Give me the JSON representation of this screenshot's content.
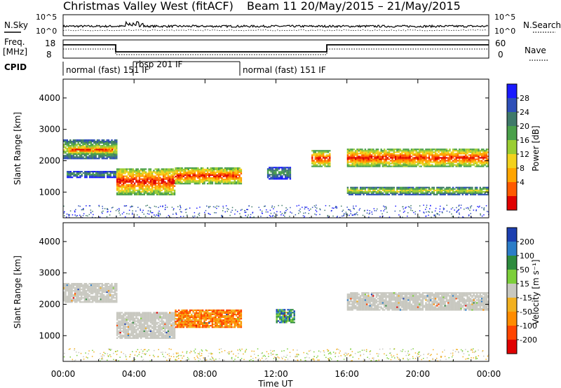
{
  "chart_data": {
    "type": "heatmap",
    "title_left": "Christmas Valley West (fitACF)",
    "title_right": "Beam 11 20/May/2015 – 21/May/2015",
    "xlabel": "Time UT",
    "x_ticks": [
      "00:00",
      "04:00",
      "08:00",
      "12:00",
      "16:00",
      "20:00",
      "00:00"
    ],
    "xlim_hours": [
      0,
      24
    ],
    "top_panels": {
      "nsky_label": "N.Sky",
      "nsearch_label": "N.Search",
      "noise_ticks_left": [
        "10^5",
        "10^0"
      ],
      "noise_ticks_right": [
        "10^5",
        "10^0"
      ],
      "freq_label_1": "Freq.",
      "freq_label_2": "[MHz]",
      "freq_ticks": [
        "18",
        "8"
      ],
      "nave_label": "Nave",
      "nave_ticks": [
        "60",
        "0"
      ],
      "cpid_label": "CPID",
      "cpid_segments": [
        {
          "label": "normal (fast) 151 IF",
          "start_hour": 0.1
        },
        {
          "label": "rbsp 201 IF",
          "start_hour": 4.0
        },
        {
          "label": "normal (fast) 151 IF",
          "start_hour": 10.0
        }
      ]
    },
    "panels": [
      {
        "ylabel": "Slant Range [km]",
        "y_ticks": [
          "1000",
          "2000",
          "3000",
          "4000"
        ],
        "ylim_km": [
          180,
          4600
        ],
        "colorbar_label": "Power [dB]",
        "colorbar_ticks": [
          "4",
          "8",
          "12",
          "16",
          "20",
          "24",
          "28"
        ],
        "colorbar_colors": [
          "#1a1aff",
          "#2e4fb8",
          "#3f7a6a",
          "#4aa04a",
          "#9acd32",
          "#f2d21e",
          "#ffa500",
          "#ff5a00",
          "#e00000"
        ]
      },
      {
        "ylabel": "Slant Range [km]",
        "y_ticks": [
          "1000",
          "2000",
          "3000",
          "4000"
        ],
        "ylim_km": [
          180,
          4600
        ],
        "colorbar_label": "Velocity [m s⁻¹]",
        "colorbar_ticks": [
          "200",
          "100",
          "50",
          "15",
          "-15",
          "-50",
          "-100",
          "-200"
        ],
        "colorbar_colors": [
          "#1c3fb0",
          "#2c7dc8",
          "#2e8b3e",
          "#7ccf3a",
          "#c8c8c0",
          "#f2b020",
          "#ff8c00",
          "#ff4500",
          "#e00000"
        ]
      }
    ],
    "echo_regions_power": [
      {
        "t0": 0.0,
        "t1": 3.0,
        "r0": 2050,
        "r1": 2650,
        "level": "mid"
      },
      {
        "t0": 0.3,
        "t1": 2.8,
        "r0": 2200,
        "r1": 2450,
        "level": "high"
      },
      {
        "t0": 0.2,
        "t1": 3.0,
        "r0": 1450,
        "r1": 1650,
        "level": "low"
      },
      {
        "t0": 3.0,
        "t1": 6.3,
        "r0": 900,
        "r1": 1750,
        "level": "high"
      },
      {
        "t0": 6.3,
        "t1": 10.0,
        "r0": 1250,
        "r1": 1750,
        "level": "high"
      },
      {
        "t0": 11.5,
        "t1": 12.8,
        "r0": 1400,
        "r1": 1800,
        "level": "low"
      },
      {
        "t0": 14.0,
        "t1": 15.0,
        "r0": 1800,
        "r1": 2300,
        "level": "high"
      },
      {
        "t0": 16.0,
        "t1": 24.0,
        "r0": 1800,
        "r1": 2350,
        "level": "high"
      },
      {
        "t0": 16.0,
        "t1": 24.0,
        "r0": 900,
        "r1": 1150,
        "level": "mid"
      }
    ],
    "echo_regions_velocity": [
      {
        "t0": 0.0,
        "t1": 3.0,
        "r0": 2050,
        "r1": 2650,
        "vel": "-15..15"
      },
      {
        "t0": 3.0,
        "t1": 6.3,
        "r0": 900,
        "r1": 1750,
        "vel": "-15..15"
      },
      {
        "t0": 6.3,
        "t1": 10.0,
        "r0": 1250,
        "r1": 1800,
        "vel": "-100..-50"
      },
      {
        "t0": 12.0,
        "t1": 13.0,
        "r0": 1400,
        "r1": 1850,
        "vel": "15..200"
      },
      {
        "t0": 16.0,
        "t1": 24.0,
        "r0": 1800,
        "r1": 2350,
        "vel": "-15..15"
      }
    ]
  }
}
